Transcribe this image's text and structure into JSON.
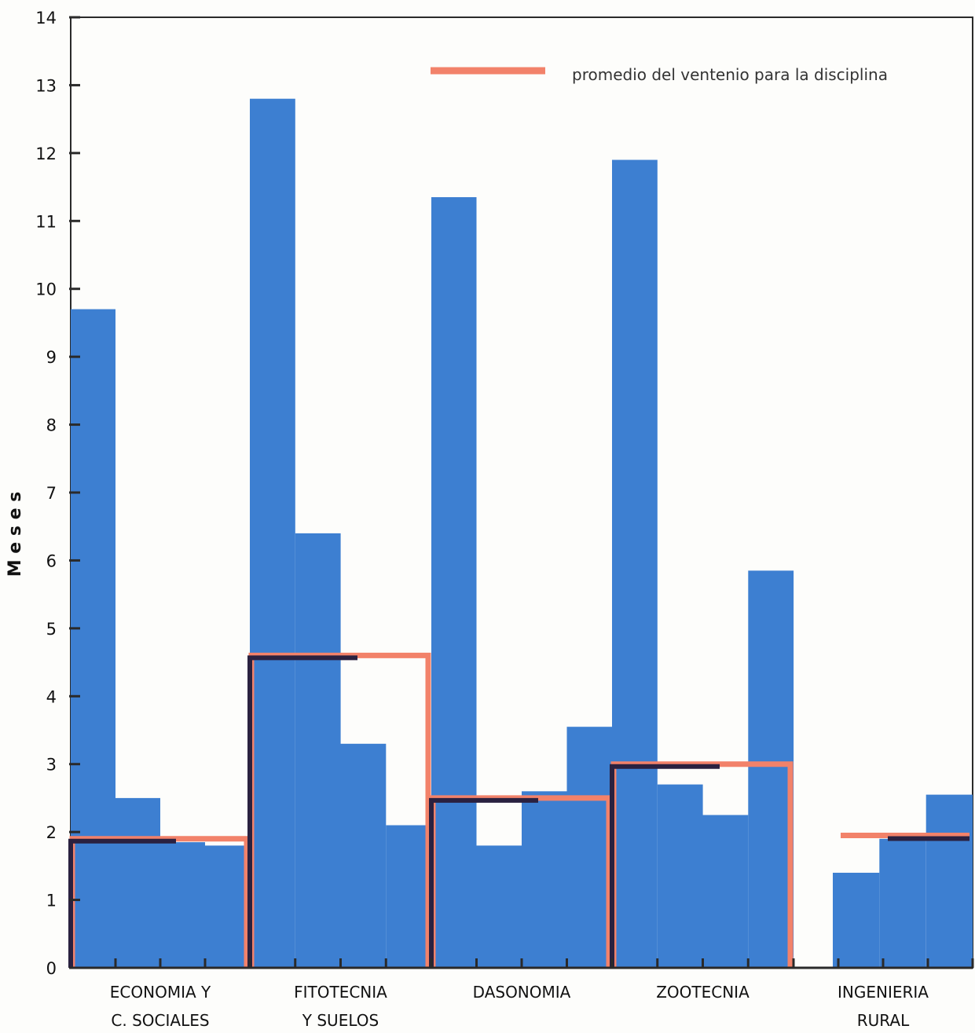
{
  "chart_data": {
    "type": "bar",
    "ylabel": "M e s e s",
    "ylim": [
      0,
      14
    ],
    "yticks": [
      0,
      1,
      2,
      3,
      4,
      5,
      6,
      7,
      8,
      9,
      10,
      11,
      12,
      13,
      14
    ],
    "legend": {
      "label": "promedio del ventenio para la disciplina",
      "placement": "top-right",
      "color": "#f2826a"
    },
    "colors": {
      "bar": "#3d7fd1",
      "average": "#f2826a",
      "average_outline": "#2a2140",
      "axis": "#2a2a2a"
    },
    "groups": [
      {
        "label_lines": [
          "ECONOMIA Y",
          "C. SOCIALES"
        ],
        "values": [
          9.7,
          2.5,
          1.85,
          1.8
        ],
        "average": 1.9
      },
      {
        "label_lines": [
          "FITOTECNIA",
          "Y SUELOS"
        ],
        "values": [
          12.8,
          6.4,
          3.3,
          2.1
        ],
        "average": 4.6
      },
      {
        "label_lines": [
          "DASONOMIA"
        ],
        "values": [
          11.35,
          1.8,
          2.6,
          3.55
        ],
        "average": 2.5
      },
      {
        "label_lines": [
          "ZOOTECNIA"
        ],
        "values": [
          11.9,
          2.7,
          2.25,
          5.85
        ],
        "average": 3.0
      },
      {
        "label_lines": [
          "INGENIERIA",
          "RURAL"
        ],
        "values": [
          null,
          1.4,
          1.9,
          2.55
        ],
        "average": 1.95
      }
    ]
  }
}
